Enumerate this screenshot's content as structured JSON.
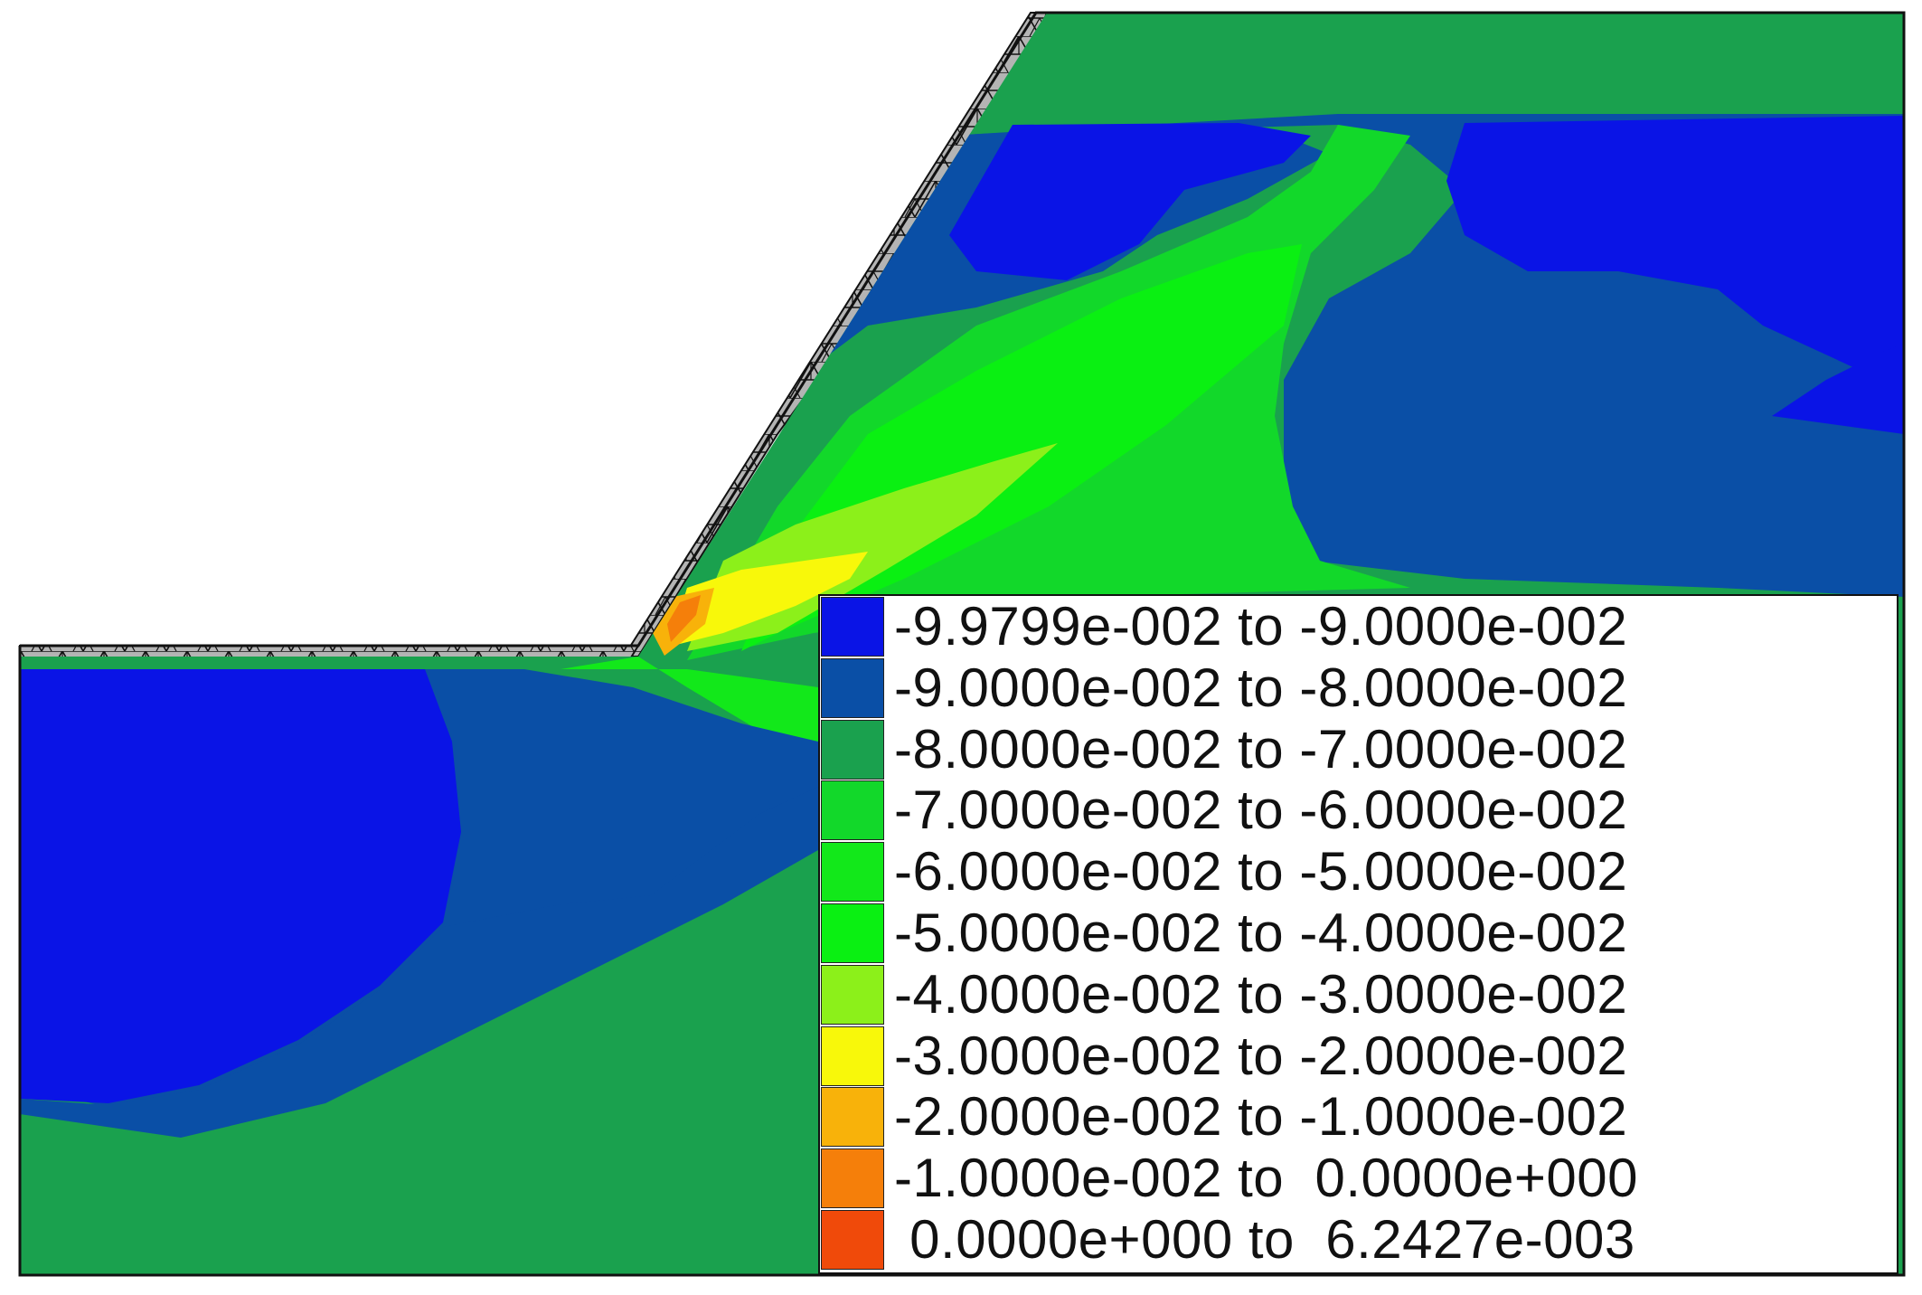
{
  "legend": {
    "items": [
      {
        "range": "-9.9799e-002 to -9.0000e-002",
        "color": "#0a14e6"
      },
      {
        "range": "-9.0000e-002 to -8.0000e-002",
        "color": "#0a4fa6"
      },
      {
        "range": "-8.0000e-002 to -7.0000e-002",
        "color": "#1aa14e"
      },
      {
        "range": "-7.0000e-002 to -6.0000e-002",
        "color": "#12d82a"
      },
      {
        "range": "-6.0000e-002 to -5.0000e-002",
        "color": "#12e81a"
      },
      {
        "range": "-5.0000e-002 to -4.0000e-002",
        "color": "#0af012"
      },
      {
        "range": "-4.0000e-002 to -3.0000e-002",
        "color": "#8cf01a"
      },
      {
        "range": "-3.0000e-002 to -2.0000e-002",
        "color": "#f8f80a"
      },
      {
        "range": "-2.0000e-002 to -1.0000e-002",
        "color": "#f8b20a"
      },
      {
        "range": "-1.0000e-002 to  0.0000e+000",
        "color": "#f57f0a"
      },
      {
        "range": " 0.0000e+000 to  6.2427e-003",
        "color": "#f04a0a"
      }
    ]
  },
  "colors": {
    "mesh_fill": "#b4b4b4",
    "mesh_line": "#111111"
  }
}
